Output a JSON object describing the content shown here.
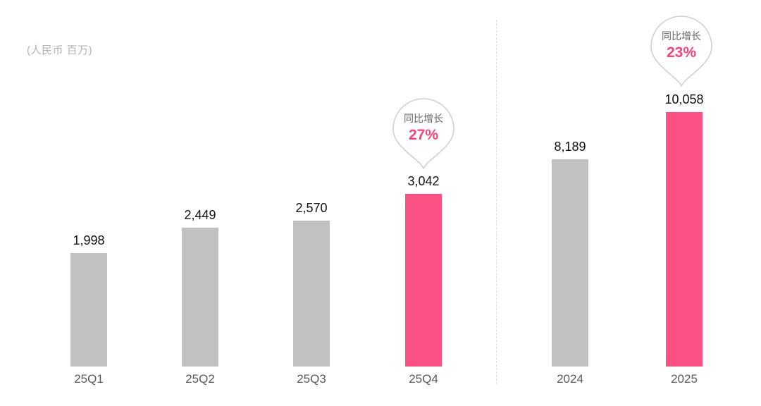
{
  "unit_label": "(人民币 百万)",
  "colors": {
    "bar_default": "#c1c1c1",
    "bar_highlight": "#fb5084",
    "callout_percent": "#f9437a",
    "axis_label": "#595959",
    "divider": "#dedede"
  },
  "chart_data": {
    "type": "bar",
    "title": "",
    "unit": "人民币 百万 (RMB millions)",
    "grid": false,
    "legend": null,
    "groups": [
      {
        "name": "quarterly",
        "categories": [
          "25Q1",
          "25Q2",
          "25Q3",
          "25Q4"
        ],
        "values": [
          1998,
          2449,
          2570,
          3042
        ],
        "labels": [
          "1,998",
          "2,449",
          "2,570",
          "3,042"
        ],
        "highlight_index": 3,
        "callout": {
          "text": "同比增长",
          "percent": "27%",
          "target": "25Q4"
        }
      },
      {
        "name": "annual",
        "categories": [
          "2024",
          "2025"
        ],
        "values": [
          8189,
          10058
        ],
        "labels": [
          "8,189",
          "10,058"
        ],
        "highlight_index": 1,
        "callout": {
          "text": "同比增长",
          "percent": "23%",
          "target": "2025"
        }
      }
    ]
  }
}
